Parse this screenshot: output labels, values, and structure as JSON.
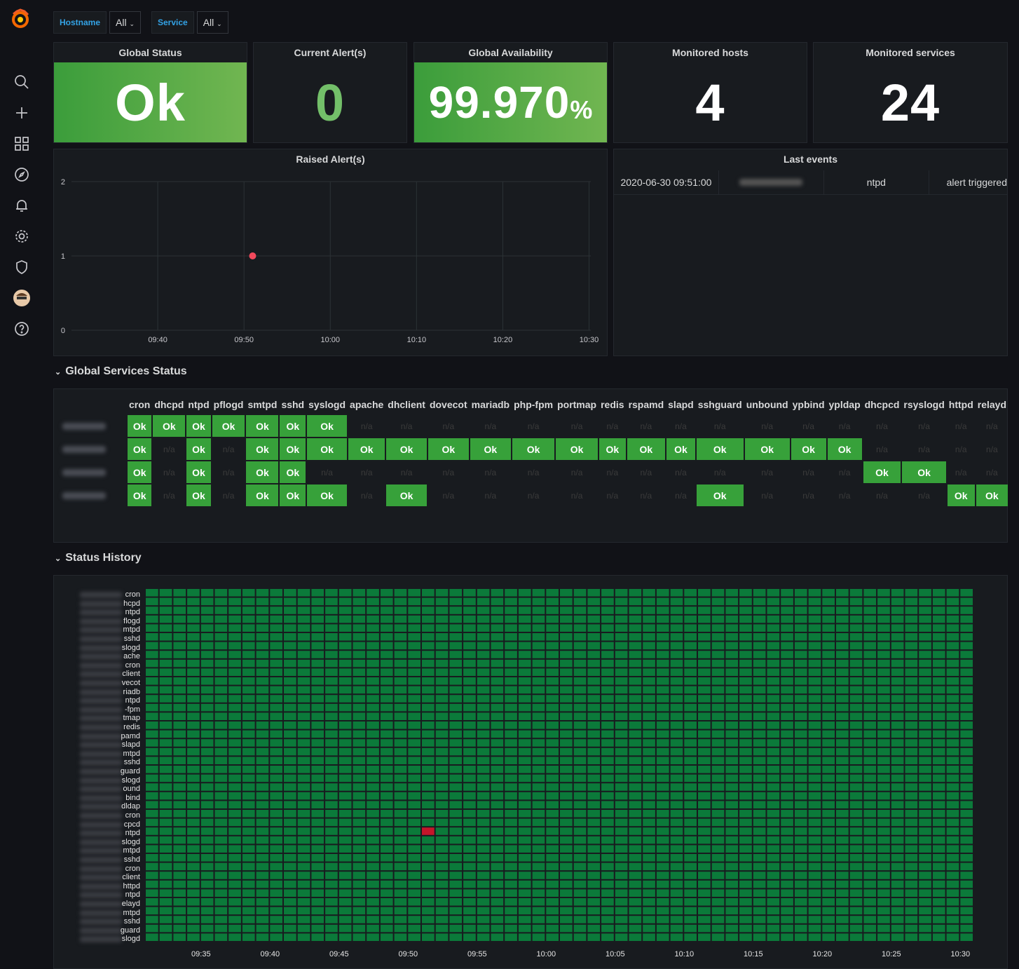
{
  "nav": {
    "icons": [
      "grafana-logo",
      "search-icon",
      "plus-icon",
      "dashboards-icon",
      "explore-icon",
      "alerting-icon",
      "configuration-icon",
      "shield-icon",
      "user-avatar",
      "help-icon"
    ]
  },
  "variables": [
    {
      "label": "Hostname",
      "value": "All"
    },
    {
      "label": "Service",
      "value": "All"
    }
  ],
  "stats": {
    "global_status": {
      "title": "Global Status",
      "value": "Ok"
    },
    "current_alerts": {
      "title": "Current Alert(s)",
      "value": "0"
    },
    "global_availability": {
      "title": "Global Availability",
      "value": "99.970",
      "unit": "%"
    },
    "monitored_hosts": {
      "title": "Monitored hosts",
      "value": "4"
    },
    "monitored_services": {
      "title": "Monitored services",
      "value": "24"
    }
  },
  "raised_alerts": {
    "title": "Raised Alert(s)",
    "chart_data": {
      "type": "scatter",
      "x_ticks": [
        "09:40",
        "09:50",
        "10:00",
        "10:10",
        "10:20",
        "10:30"
      ],
      "y_ticks": [
        "0",
        "1",
        "2"
      ],
      "ylim": [
        0,
        2
      ],
      "points": [
        {
          "x": "09:51",
          "y": 1
        }
      ],
      "point_color": "#f2495c",
      "grid": true
    }
  },
  "last_events": {
    "title": "Last events",
    "rows": [
      {
        "time": "2020-06-30 09:51:00",
        "host": "",
        "service": "ntpd",
        "event": "alert triggered"
      }
    ]
  },
  "sections": {
    "global_services": "Global Services Status",
    "status_history": "Status History"
  },
  "services_table": {
    "columns": [
      "cron",
      "dhcpd",
      "ntpd",
      "pflogd",
      "smtpd",
      "sshd",
      "syslogd",
      "apache",
      "dhclient",
      "dovecot",
      "mariadb",
      "php-fpm",
      "portmap",
      "redis",
      "rspamd",
      "slapd",
      "sshguard",
      "unbound",
      "ypbind",
      "ypldap",
      "dhcpcd",
      "rsyslogd",
      "httpd",
      "relayd"
    ],
    "ok_label": "Ok",
    "na_label": "n/a",
    "rows": [
      [
        "Ok",
        "Ok",
        "Ok",
        "Ok",
        "Ok",
        "Ok",
        "Ok",
        "n/a",
        "n/a",
        "n/a",
        "n/a",
        "n/a",
        "n/a",
        "n/a",
        "n/a",
        "n/a",
        "n/a",
        "n/a",
        "n/a",
        "n/a",
        "n/a",
        "n/a",
        "n/a",
        "n/a"
      ],
      [
        "Ok",
        "n/a",
        "Ok",
        "n/a",
        "Ok",
        "Ok",
        "Ok",
        "Ok",
        "Ok",
        "Ok",
        "Ok",
        "Ok",
        "Ok",
        "Ok",
        "Ok",
        "Ok",
        "Ok",
        "Ok",
        "Ok",
        "Ok",
        "n/a",
        "n/a",
        "n/a",
        "n/a"
      ],
      [
        "Ok",
        "n/a",
        "Ok",
        "n/a",
        "Ok",
        "Ok",
        "n/a",
        "n/a",
        "n/a",
        "n/a",
        "n/a",
        "n/a",
        "n/a",
        "n/a",
        "n/a",
        "n/a",
        "n/a",
        "n/a",
        "n/a",
        "n/a",
        "Ok",
        "Ok",
        "n/a",
        "n/a"
      ],
      [
        "Ok",
        "n/a",
        "Ok",
        "n/a",
        "Ok",
        "Ok",
        "Ok",
        "n/a",
        "Ok",
        "n/a",
        "n/a",
        "n/a",
        "n/a",
        "n/a",
        "n/a",
        "n/a",
        "Ok",
        "n/a",
        "n/a",
        "n/a",
        "n/a",
        "n/a",
        "Ok",
        "Ok"
      ]
    ]
  },
  "status_history": {
    "row_labels": [
      "cron",
      "hcpd",
      "ntpd",
      "flogd",
      "mtpd",
      "sshd",
      "slogd",
      "ache",
      "cron",
      "client",
      "vecot",
      "riadb",
      "ntpd",
      "-fpm",
      "tmap",
      "redis",
      "pamd",
      "slapd",
      "mtpd",
      "sshd",
      "guard",
      "slogd",
      "ound",
      "bind",
      "dldap",
      "cron",
      "cpcd",
      "ntpd",
      "slogd",
      "mtpd",
      "sshd",
      "cron",
      "client",
      "httpd",
      "ntpd",
      "elayd",
      "mtpd",
      "sshd",
      "guard",
      "slogd"
    ],
    "x_ticks": [
      "09:35",
      "09:40",
      "09:45",
      "09:50",
      "09:55",
      "10:00",
      "10:05",
      "10:10",
      "10:15",
      "10:20",
      "10:25",
      "10:30"
    ],
    "ok_color": "#0b7a3a",
    "alert_color": "#c4162a",
    "alerts": [
      {
        "row": 27,
        "time": "09:51"
      }
    ]
  }
}
